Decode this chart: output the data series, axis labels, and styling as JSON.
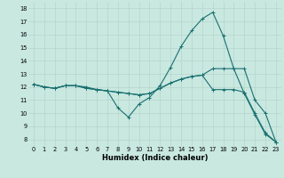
{
  "xlabel": "Humidex (Indice chaleur)",
  "bg_color": "#c8e8e0",
  "grid_color": "#b0d0c8",
  "line_color": "#1a7070",
  "xlim": [
    -0.5,
    23.5
  ],
  "ylim": [
    7.5,
    18.5
  ],
  "xticks": [
    0,
    1,
    2,
    3,
    4,
    5,
    6,
    7,
    8,
    9,
    10,
    11,
    12,
    13,
    14,
    15,
    16,
    17,
    18,
    19,
    20,
    21,
    22,
    23
  ],
  "yticks": [
    8,
    9,
    10,
    11,
    12,
    13,
    14,
    15,
    16,
    17,
    18
  ],
  "series": [
    [
      12.2,
      12.0,
      11.9,
      12.1,
      12.1,
      12.0,
      11.8,
      11.7,
      10.4,
      9.7,
      10.7,
      11.2,
      12.1,
      13.5,
      15.1,
      16.3,
      17.2,
      17.7,
      15.9,
      13.4,
      11.5,
      9.9,
      8.4,
      7.8
    ],
    [
      12.2,
      12.0,
      11.9,
      12.1,
      12.1,
      11.9,
      11.8,
      11.7,
      11.6,
      11.5,
      11.4,
      11.5,
      11.9,
      12.3,
      12.6,
      12.8,
      12.9,
      11.8,
      11.8,
      11.8,
      11.6,
      10.0,
      8.5,
      7.8
    ],
    [
      12.2,
      12.0,
      11.9,
      12.1,
      12.1,
      11.9,
      11.8,
      11.7,
      11.6,
      11.5,
      11.4,
      11.5,
      11.9,
      12.3,
      12.6,
      12.8,
      12.9,
      13.4,
      13.4,
      13.4,
      13.4,
      11.0,
      10.0,
      7.8
    ]
  ],
  "xlabel_fontsize": 6.0,
  "tick_fontsize": 4.8,
  "linewidth": 0.8,
  "markersize": 2.5
}
